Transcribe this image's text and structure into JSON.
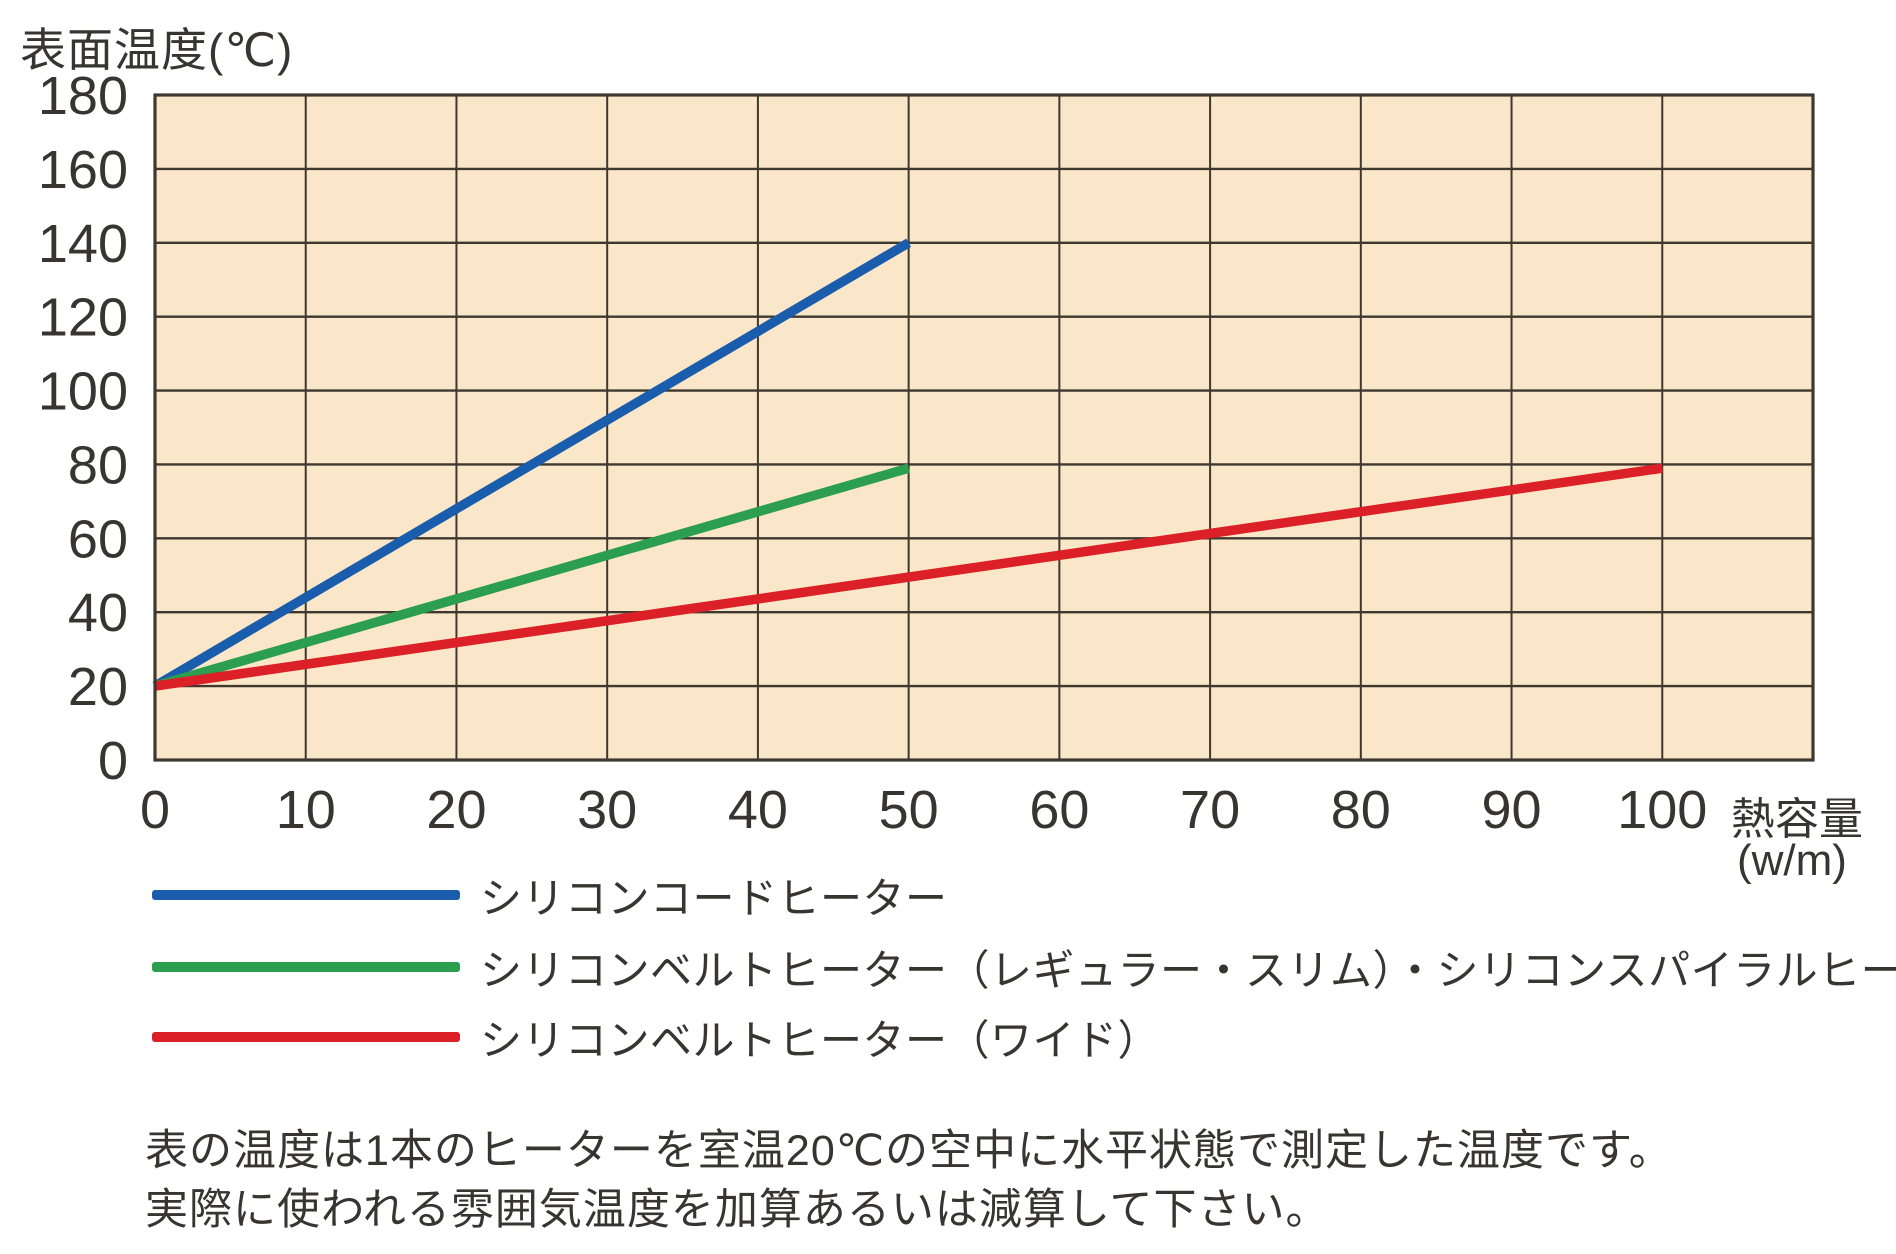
{
  "chart_data": {
    "type": "line",
    "y_axis_title": "表面温度(℃)",
    "x_axis_title": "熱容量",
    "x_axis_unit": "(w/m)",
    "x_ticks": [
      0,
      10,
      20,
      30,
      40,
      50,
      60,
      70,
      80,
      90,
      100
    ],
    "y_ticks": [
      0,
      20,
      40,
      60,
      80,
      100,
      120,
      140,
      160,
      180
    ],
    "xlim": [
      0,
      110
    ],
    "ylim": [
      0,
      180
    ],
    "x_grid_step": 10,
    "y_grid_step": 20,
    "grid": true,
    "plot_background": "#fae6c8",
    "grid_color": "#3f382f",
    "legend_position": "below",
    "series": [
      {
        "name": "シリコンコードヒーター",
        "color": "#1a5dad",
        "points": [
          [
            0,
            20
          ],
          [
            50,
            140
          ]
        ]
      },
      {
        "name": "シリコンベルトヒーター（レギュラー・スリム）・シリコンスパイラルヒーター",
        "color": "#2b9e4f",
        "points": [
          [
            0,
            20
          ],
          [
            50,
            79
          ]
        ]
      },
      {
        "name": "シリコンベルトヒーター（ワイド）",
        "color": "#dc2027",
        "points": [
          [
            0,
            20
          ],
          [
            100,
            79
          ]
        ]
      }
    ],
    "notes": [
      "表の温度は1本のヒーターを室温20℃の空中に水平状態で測定した温度です。",
      "実際に使われる雰囲気温度を加算あるいは減算して下さい。"
    ]
  }
}
